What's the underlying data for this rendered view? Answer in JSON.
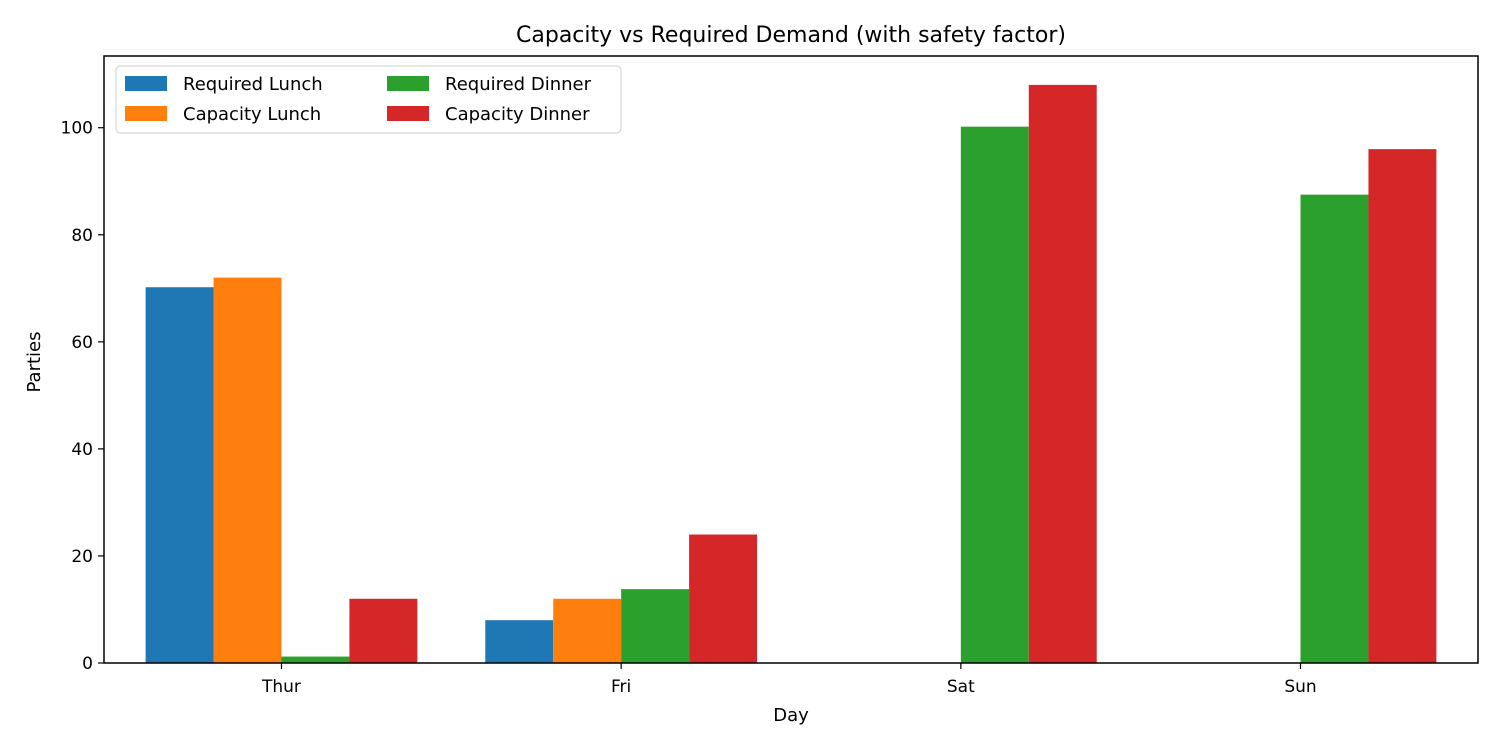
{
  "chart_data": {
    "type": "bar",
    "title": "Capacity vs Required Demand (with safety factor)",
    "xlabel": "Day",
    "ylabel": "Parties",
    "categories": [
      "Thur",
      "Fri",
      "Sat",
      "Sun"
    ],
    "series": [
      {
        "name": "Required Lunch",
        "color": "#1f77b4",
        "values": [
          70.2,
          8.0,
          0,
          0
        ]
      },
      {
        "name": "Capacity Lunch",
        "color": "#ff7f0e",
        "values": [
          72,
          12,
          0,
          0
        ]
      },
      {
        "name": "Required Dinner",
        "color": "#2ca02c",
        "values": [
          1.2,
          13.8,
          100.2,
          87.5
        ]
      },
      {
        "name": "Capacity Dinner",
        "color": "#d62728",
        "values": [
          12,
          24,
          108,
          96
        ]
      }
    ],
    "ylim": [
      0,
      113.4
    ],
    "yticks": [
      0,
      20,
      40,
      60,
      80,
      100
    ],
    "grid": false,
    "legend": {
      "placement": "upper-left",
      "columns": 2
    }
  }
}
